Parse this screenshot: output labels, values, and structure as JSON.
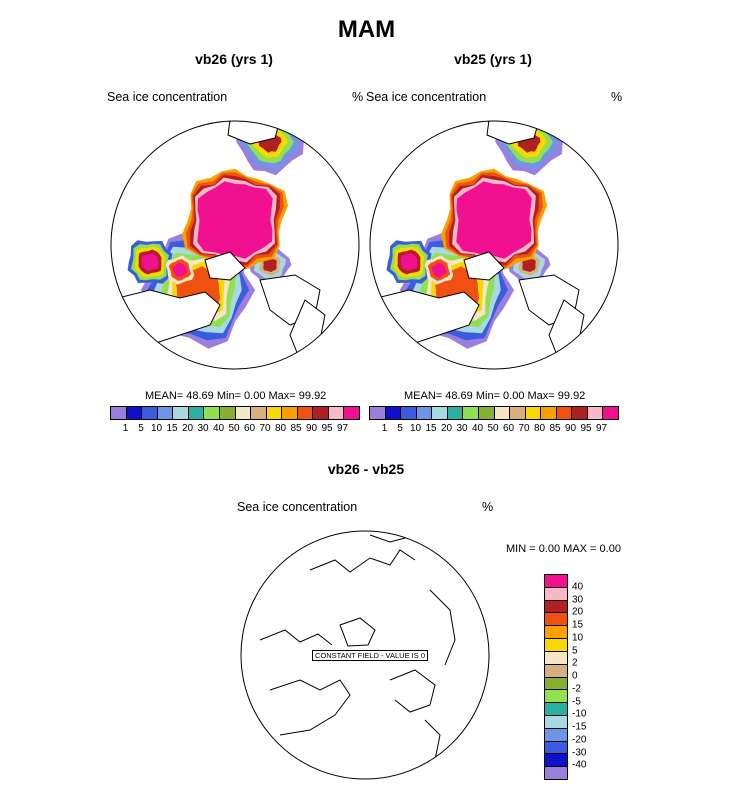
{
  "title": "MAM",
  "chart_data": [
    {
      "type": "heatmap",
      "title": "vb26 (yrs 1)",
      "variable_label": "Sea ice concentration",
      "units": "%",
      "stats": "MEAN=  48.69  Min=   0.00  Max=  99.92",
      "colorbar": {
        "colors": [
          "#9b7fdc",
          "#1010c8",
          "#3c5ce0",
          "#6e96e8",
          "#a8d8e0",
          "#28b0a0",
          "#90e050",
          "#88b030",
          "#f5e6c6",
          "#d8b080",
          "#f8d800",
          "#f8a000",
          "#f05010",
          "#b02020",
          "#f8b8c8",
          "#f01090"
        ],
        "ticks": [
          "1",
          "5",
          "10",
          "15",
          "20",
          "30",
          "40",
          "50",
          "60",
          "70",
          "80",
          "85",
          "90",
          "95",
          "97"
        ]
      }
    },
    {
      "type": "heatmap",
      "title": "vb25 (yrs 1)",
      "variable_label": "Sea ice concentration",
      "units": "%",
      "stats": "MEAN=  48.69  Min=   0.00  Max=  99.92",
      "colorbar": {
        "colors": [
          "#9b7fdc",
          "#1010c8",
          "#3c5ce0",
          "#6e96e8",
          "#a8d8e0",
          "#28b0a0",
          "#90e050",
          "#88b030",
          "#f5e6c6",
          "#d8b080",
          "#f8d800",
          "#f8a000",
          "#f05010",
          "#b02020",
          "#f8b8c8",
          "#f01090"
        ],
        "ticks": [
          "1",
          "5",
          "10",
          "15",
          "20",
          "30",
          "40",
          "50",
          "60",
          "70",
          "80",
          "85",
          "90",
          "95",
          "97"
        ]
      }
    },
    {
      "type": "heatmap",
      "title": "vb26 - vb25",
      "variable_label": "Sea ice concentration",
      "units": "%",
      "stats": "MIN =   0.00 MAX =   0.00",
      "constant_field_label": "CONSTANT FIELD - VALUE IS 0",
      "colorbar": {
        "colors": [
          "#f01090",
          "#f8b8c8",
          "#b02020",
          "#f05010",
          "#f8a000",
          "#f8d800",
          "#f5e6c6",
          "#d8b080",
          "#88b030",
          "#90e050",
          "#28b0a0",
          "#a8d8e0",
          "#6e96e8",
          "#3c5ce0",
          "#1010c8",
          "#9b7fdc"
        ],
        "ticks": [
          "40",
          "30",
          "20",
          "15",
          "10",
          "5",
          "2",
          "0",
          "-2",
          "-5",
          "-10",
          "-15",
          "-20",
          "-30",
          "-40"
        ]
      }
    }
  ]
}
